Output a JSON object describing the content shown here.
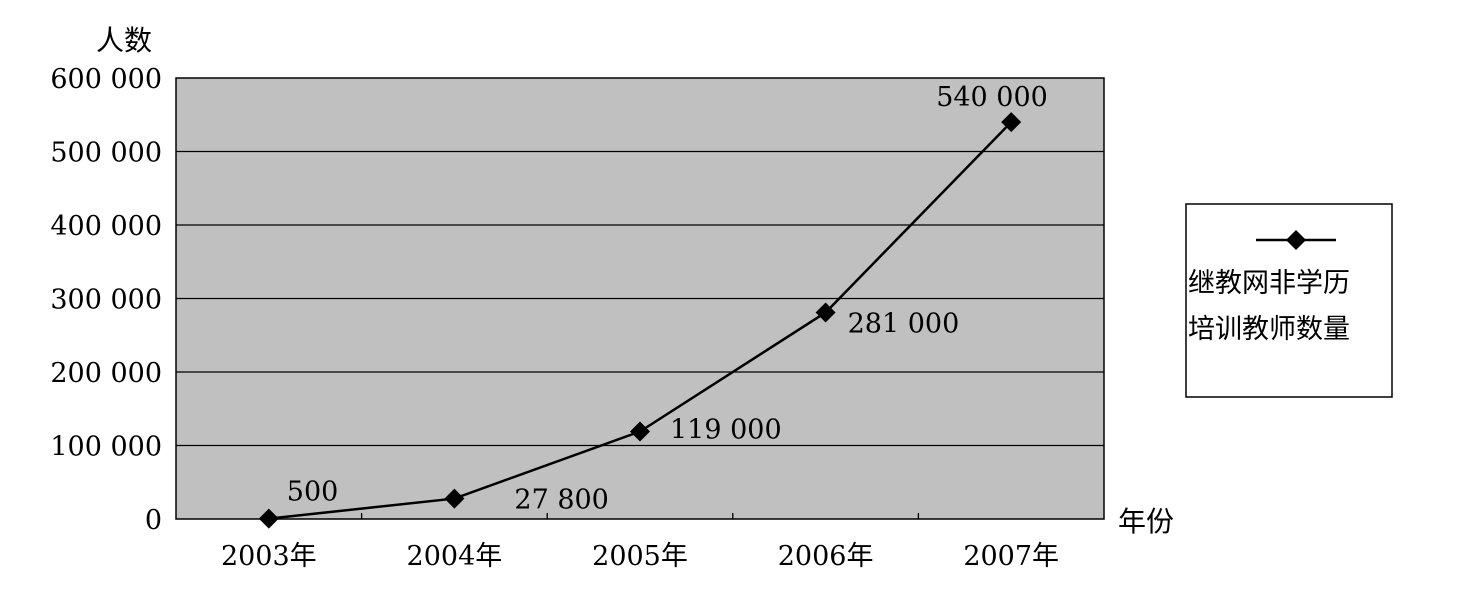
{
  "chart_data": {
    "type": "line",
    "ylabel": "人数",
    "xlabel": "年份",
    "categories": [
      "2003年",
      "2004年",
      "2005年",
      "2006年",
      "2007年"
    ],
    "series": [
      {
        "name": "继教网非学历培训教师数量",
        "name_lines": [
          "继教网非学历",
          "培训教师数量"
        ],
        "values": [
          500,
          27800,
          119000,
          281000,
          540000
        ],
        "data_labels": [
          "500",
          "27 800",
          "119 000",
          "281 000",
          "540 000"
        ],
        "marker": "diamond",
        "color": "#000000"
      }
    ],
    "ylim": [
      0,
      600000
    ],
    "yticks": [
      0,
      100000,
      200000,
      300000,
      400000,
      500000,
      600000
    ],
    "ytick_labels": [
      "0",
      "100 000",
      "200 000",
      "300 000",
      "400 000",
      "500 000",
      "600 000"
    ],
    "grid": true,
    "plot_background": "#c0c0c0",
    "legend_position": "right"
  }
}
